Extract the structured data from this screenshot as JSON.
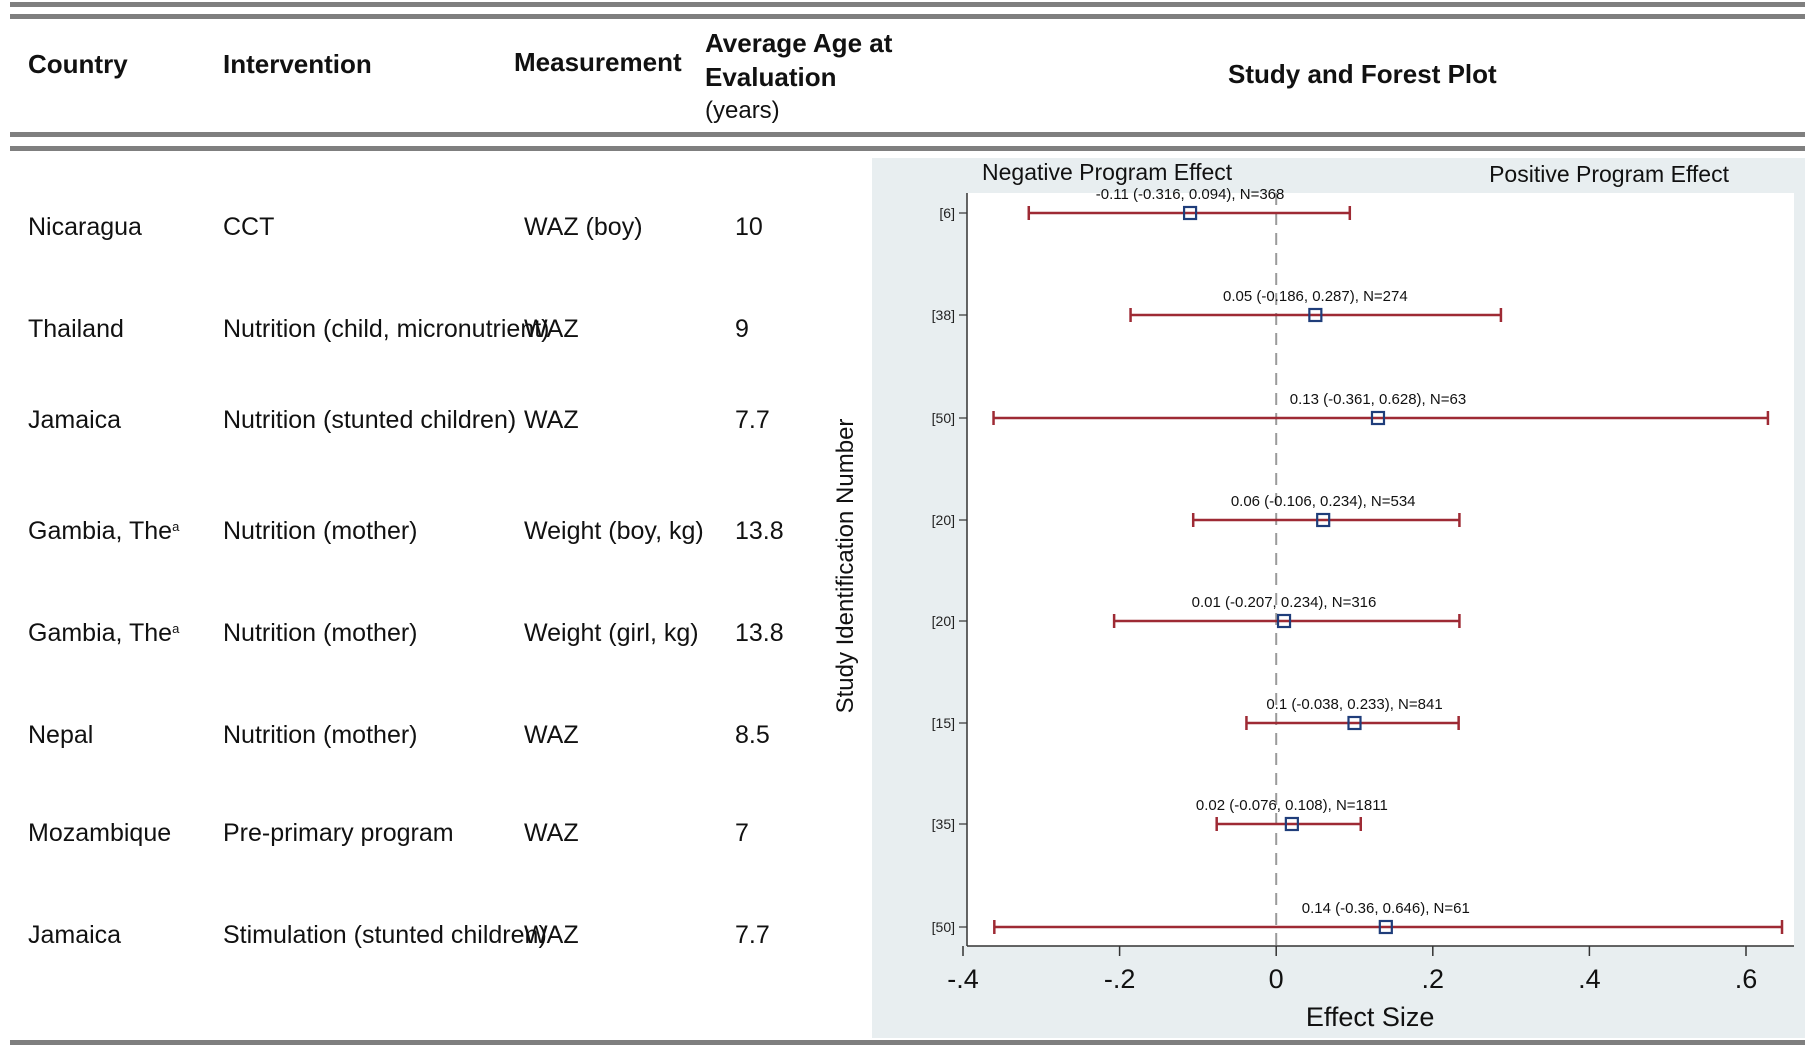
{
  "header": {
    "country": "Country",
    "intervention": "Intervention",
    "measurement": "Measurement",
    "age_line1": "Average Age at",
    "age_line2": "Evaluation",
    "age_line3": "(years)",
    "plot": "Study and Forest Plot"
  },
  "rows": [
    {
      "country": "Nicaragua",
      "country_sup": "",
      "intervention": "CCT",
      "measurement": "WAZ (boy)",
      "age": "10"
    },
    {
      "country": "Thailand",
      "country_sup": "",
      "intervention": "Nutrition (child, micronutrient)",
      "measurement": "WAZ",
      "age": "9"
    },
    {
      "country": "Jamaica",
      "country_sup": "",
      "intervention": "Nutrition (stunted children)",
      "measurement": "WAZ",
      "age": "7.7"
    },
    {
      "country": "Gambia, The",
      "country_sup": "a",
      "intervention": "Nutrition (mother)",
      "measurement": "Weight (boy, kg)",
      "age": "13.8"
    },
    {
      "country": "Gambia, The",
      "country_sup": "a",
      "intervention": "Nutrition (mother)",
      "measurement": "Weight (girl, kg)",
      "age": "13.8"
    },
    {
      "country": "Nepal",
      "country_sup": "",
      "intervention": "Nutrition (mother)",
      "measurement": "WAZ",
      "age": "8.5"
    },
    {
      "country": "Mozambique",
      "country_sup": "",
      "intervention": "Pre-primary program",
      "measurement": "WAZ",
      "age": "7"
    },
    {
      "country": "Jamaica",
      "country_sup": "",
      "intervention": "Stimulation (stunted children)",
      "measurement": "WAZ",
      "age": "7.7"
    }
  ],
  "chart_data": {
    "type": "forest",
    "xlabel": "Effect Size",
    "ylabel": "Study Identification Number",
    "xlim": [
      -0.4,
      0.65
    ],
    "xticks": [
      -0.4,
      -0.2,
      0,
      0.2,
      0.4,
      0.6
    ],
    "xtick_labels": [
      "-.4",
      "-.2",
      "0",
      ".2",
      ".4",
      ".6"
    ],
    "left_annotation": "Negative Program Effect",
    "right_annotation": "Positive Program Effect",
    "reference_line": 0,
    "colors": {
      "ci_line": "#9e2a34",
      "marker": "#1f3d7a",
      "panel_bg": "#e8eef0",
      "plot_bg": "#ffffff",
      "ref_line": "#9a9a9a"
    },
    "studies": [
      {
        "id": "[6]",
        "estimate": -0.11,
        "lower": -0.316,
        "upper": 0.094,
        "label": "-0.11  (-0.316, 0.094),  N=368"
      },
      {
        "id": "[38]",
        "estimate": 0.05,
        "lower": -0.186,
        "upper": 0.287,
        "label": "0.05  (-0.186, 0.287),  N=274"
      },
      {
        "id": "[50]",
        "estimate": 0.13,
        "lower": -0.361,
        "upper": 0.628,
        "label": "0.13  (-0.361, 0.628),  N=63"
      },
      {
        "id": "[20]",
        "estimate": 0.06,
        "lower": -0.106,
        "upper": 0.234,
        "label": "0.06  (-0.106, 0.234),  N=534"
      },
      {
        "id": "[20]",
        "estimate": 0.01,
        "lower": -0.207,
        "upper": 0.234,
        "label": "0.01  (-0.207, 0.234),  N=316"
      },
      {
        "id": "[15]",
        "estimate": 0.1,
        "lower": -0.038,
        "upper": 0.233,
        "label": "0.1  (-0.038, 0.233),  N=841"
      },
      {
        "id": "[35]",
        "estimate": 0.02,
        "lower": -0.076,
        "upper": 0.108,
        "label": "0.02  (-0.076, 0.108),  N=1811"
      },
      {
        "id": "[50]",
        "estimate": 0.14,
        "lower": -0.36,
        "upper": 0.646,
        "label": "0.14  (-0.36, 0.646),  N=61"
      }
    ]
  }
}
